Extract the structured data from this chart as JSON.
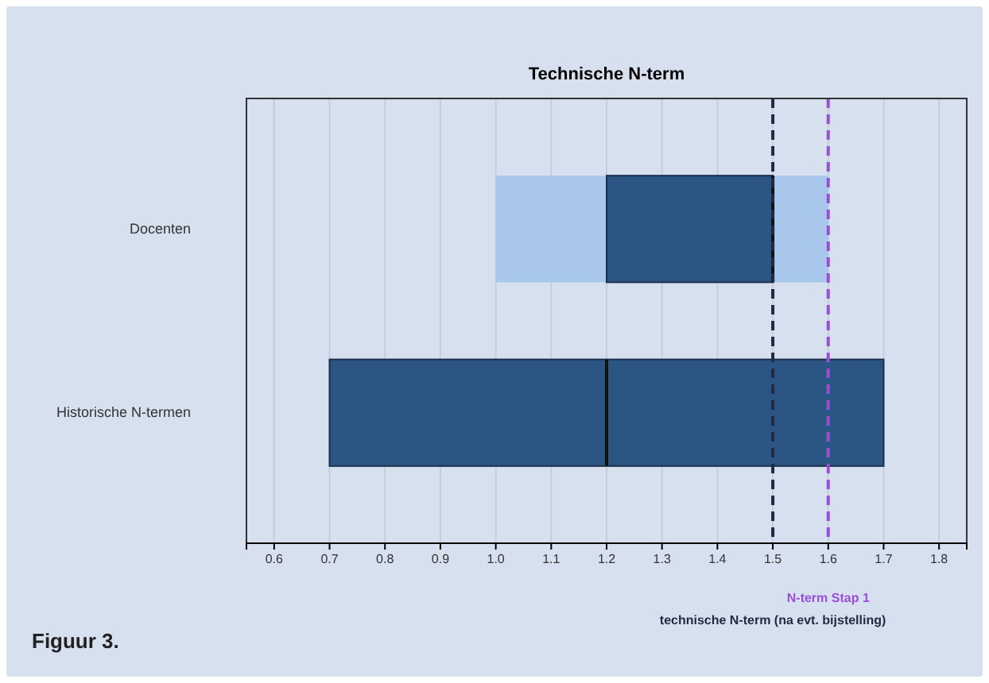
{
  "chart_data": {
    "type": "box",
    "orientation": "horizontal",
    "title": "Technische N-term",
    "categories": [
      "Docenten",
      "Historische N-termen"
    ],
    "series": [
      {
        "color": "#2b5582",
        "boxes": [
          {
            "low": 1.0,
            "q1": 1.2,
            "median": 1.5,
            "q3": 1.5,
            "high": 1.6
          },
          {
            "low": 0.7,
            "q1": 0.7,
            "median": 1.2,
            "q3": 1.7,
            "high": 1.7
          }
        ]
      }
    ],
    "colors": [
      "#a9c6ec"
    ],
    "xlim": [
      0.55,
      1.85
    ],
    "xticks": [
      {
        "value": 0.6,
        "label": "0.6"
      },
      {
        "value": 0.7,
        "label": "0.7"
      },
      {
        "value": 0.8,
        "label": "0.8"
      },
      {
        "value": 0.9,
        "label": "0.9"
      },
      {
        "value": 1.0,
        "label": "1.0"
      },
      {
        "value": 1.1,
        "label": "1.1"
      },
      {
        "value": 1.2,
        "label": "1.2"
      },
      {
        "value": 1.3,
        "label": "1.3"
      },
      {
        "value": 1.4,
        "label": "1.4"
      },
      {
        "value": 1.5,
        "label": "1.5"
      },
      {
        "value": 1.6,
        "label": "1.6"
      },
      {
        "value": 1.7,
        "label": "1.7"
      },
      {
        "value": 1.8,
        "label": "1.8"
      }
    ],
    "grid": "x",
    "ref_lines": [
      {
        "axis": "x",
        "value": 1.6,
        "label": "N-term Stap 1",
        "color": "#9b4fd6",
        "line_style": "dashed"
      },
      {
        "axis": "x",
        "value": 1.5,
        "label": "technische N-term (na evt. bijstelling)",
        "color": "#1f2a44",
        "line_style": "dashed"
      }
    ],
    "annotations": [
      "Figuur 3."
    ]
  }
}
